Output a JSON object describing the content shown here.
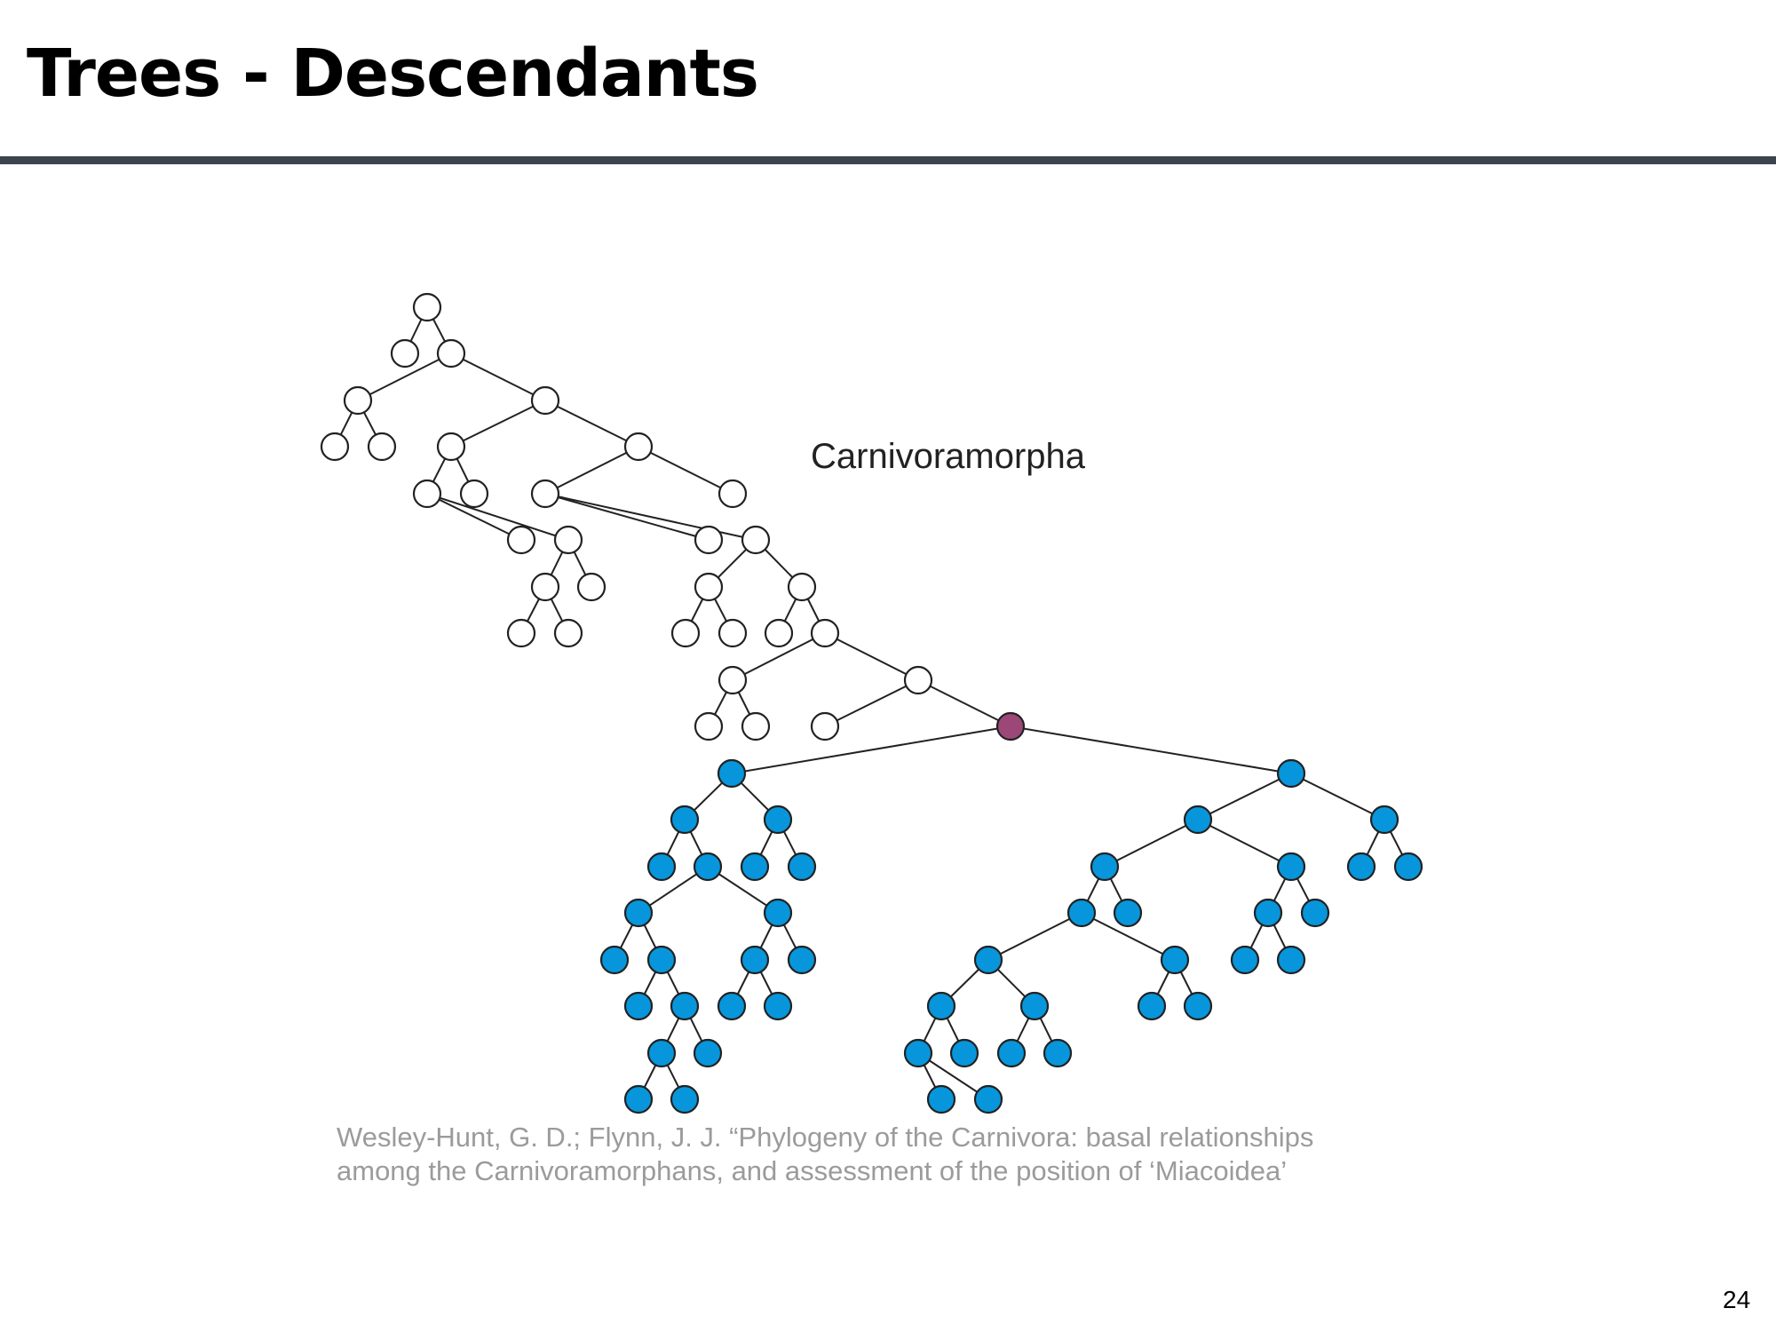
{
  "slide": {
    "title": "Trees - Descendants",
    "page_number": "24"
  },
  "tree": {
    "clade_label": "Carnivoramorpha",
    "colors": {
      "ancestor_fill": "#ffffff",
      "highlight_fill": "#9b4879",
      "descendant_fill": "#0796db",
      "edge": "#222222"
    },
    "description": {
      "highlighted_node": "Carnivoramorpha root (purple)",
      "descendant_nodes": "blue",
      "other_nodes": "white"
    }
  },
  "citation": {
    "line1": "Wesley-Hunt, G. D.; Flynn, J. J. “Phylogeny of the Carnivora: basal relationships",
    "line2": "among the Carnivoramorphans, and assessment of the position of ‘Miacoidea’"
  }
}
